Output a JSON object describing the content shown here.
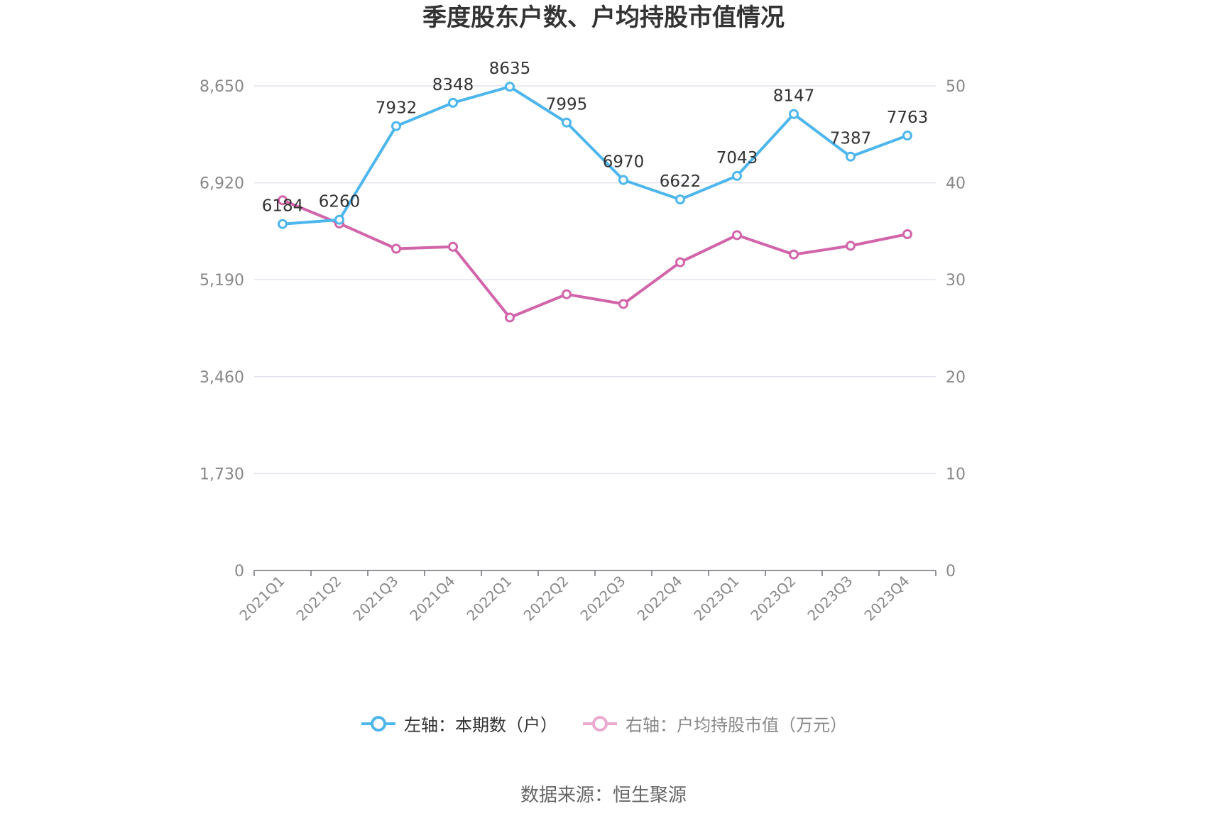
{
  "chart_data": {
    "type": "line",
    "title": "季度股东户数、户均持股市值情况",
    "categories": [
      "2021Q1",
      "2021Q2",
      "2021Q3",
      "2021Q4",
      "2022Q1",
      "2022Q2",
      "2022Q3",
      "2022Q4",
      "2023Q1",
      "2023Q2",
      "2023Q3",
      "2023Q4"
    ],
    "left_axis": {
      "ticks": [
        "0",
        "1,730",
        "3,460",
        "5,190",
        "6,920",
        "8,650"
      ],
      "min": 0,
      "max": 8650
    },
    "right_axis": {
      "ticks": [
        "0",
        "10",
        "20",
        "30",
        "40",
        "50"
      ],
      "min": 0,
      "max": 50
    },
    "series": [
      {
        "name": "左轴：本期数（户）",
        "axis": "left",
        "color": "#4db6ec",
        "values": [
          6184,
          6260,
          7932,
          8348,
          8635,
          7995,
          6970,
          6622,
          7043,
          8147,
          7387,
          7763
        ],
        "labels": [
          "6184",
          "6260",
          "7932",
          "8348",
          "8635",
          "7995",
          "6970",
          "6622",
          "7043",
          "8147",
          "7387",
          "7763"
        ]
      },
      {
        "name": "右轴：户均持股市值（万元）",
        "axis": "right",
        "color": "#d264aa",
        "values": [
          38.2,
          35.8,
          33.2,
          33.4,
          26.1,
          28.5,
          27.5,
          31.8,
          34.6,
          32.6,
          33.5,
          34.7
        ]
      }
    ],
    "grid": true,
    "legend_position": "bottom"
  },
  "legend": {
    "left_label": "左轴：本期数（户）",
    "right_label": "右轴：户均持股市值（万元）",
    "right_color": "#e9a9d1"
  },
  "source": "数据来源：恒生聚源"
}
